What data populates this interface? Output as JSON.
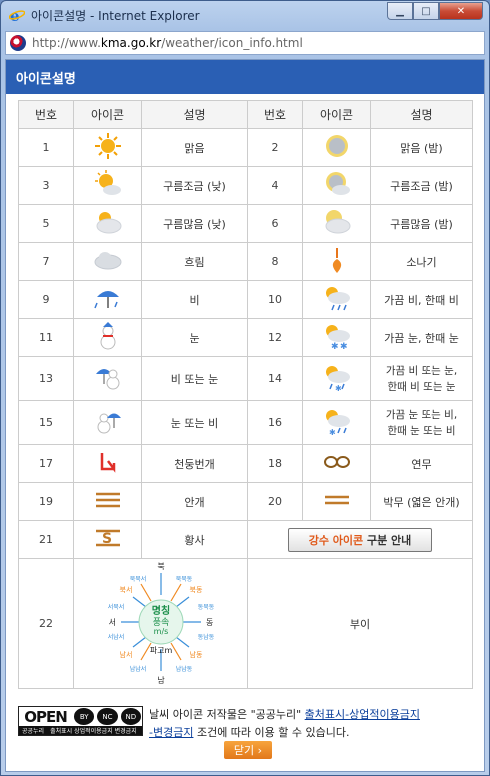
{
  "window": {
    "title": "아이콘설명 - Internet Explorer",
    "min_icon": "minimize-icon",
    "max_icon": "maximize-icon",
    "close_icon": "close-icon"
  },
  "address": {
    "prefix": "http://www.",
    "host": "kma.go.kr",
    "path": "/weather/icon_info.html"
  },
  "header": {
    "title": "아이콘설명"
  },
  "table": {
    "headers": [
      "번호",
      "아이콘",
      "설명",
      "번호",
      "아이콘",
      "설명"
    ],
    "rows": [
      {
        "n1": "1",
        "i1": "sun-icon",
        "d1": "맑음",
        "n2": "2",
        "i2": "moon-icon",
        "d2": "맑음 (밤)"
      },
      {
        "n1": "3",
        "i1": "sun-few-clouds-icon",
        "d1": "구름조금 (낮)",
        "n2": "4",
        "i2": "moon-few-clouds-icon",
        "d2": "구름조금 (밤)"
      },
      {
        "n1": "5",
        "i1": "sun-many-clouds-icon",
        "d1": "구름많음 (낮)",
        "n2": "6",
        "i2": "moon-many-clouds-icon",
        "d2": "구름많음 (밤)"
      },
      {
        "n1": "7",
        "i1": "cloudy-icon",
        "d1": "흐림",
        "n2": "8",
        "i2": "shower-icon",
        "d2": "소나기"
      },
      {
        "n1": "9",
        "i1": "rain-umbrella-icon",
        "d1": "비",
        "n2": "10",
        "i2": "occasional-rain-icon",
        "d2": "가끔 비, 한때 비"
      },
      {
        "n1": "11",
        "i1": "snowman-icon",
        "d1": "눈",
        "n2": "12",
        "i2": "occasional-snow-icon",
        "d2": "가끔 눈, 한때 눈"
      },
      {
        "n1": "13",
        "i1": "rain-or-snow-icon",
        "d1": "비 또는 눈",
        "n2": "14",
        "i2": "occasional-rain-or-snow-icon",
        "d2a": "가끔 비 또는 눈,",
        "d2b": "한때 비 또는 눈"
      },
      {
        "n1": "15",
        "i1": "snow-or-rain-icon",
        "d1": "눈 또는 비",
        "n2": "16",
        "i2": "occasional-snow-or-rain-icon",
        "d2a": "가끔 눈 또는 비,",
        "d2b": "한때 눈 또는 비"
      },
      {
        "n1": "17",
        "i1": "thunder-icon",
        "d1": "천둥번개",
        "n2": "18",
        "i2": "smoke-icon",
        "d2": "연무"
      },
      {
        "n1": "19",
        "i1": "fog-icon",
        "d1": "안개",
        "n2": "20",
        "i2": "haze-icon",
        "d2": "박무 (엷은 안개)"
      },
      {
        "n1": "21",
        "i1": "yellow-dust-icon",
        "d1": "황사",
        "button_highlight": "강수 아이콘",
        "button_rest": " 구분 안내"
      },
      {
        "n1": "22",
        "i1": "wind-compass-icon",
        "d2": "부이"
      }
    ]
  },
  "compass": {
    "n": "북",
    "nnw": "북북서",
    "nne": "북북동",
    "nw": "북서",
    "ne": "북동",
    "wnw": "서북서",
    "ene": "동북동",
    "w": "서",
    "e": "동",
    "wsw": "서남서",
    "ese": "동남동",
    "sw": "남서",
    "se": "남동",
    "ssw": "남남서",
    "sse": "남남동",
    "s": "남",
    "center_name": "명칭",
    "center_speed": "풍속",
    "center_unit": "m/s",
    "center_wave": "파고m"
  },
  "footer": {
    "open_word": "OPEN",
    "badges": [
      "BY",
      "NC",
      "ND"
    ],
    "open_label": "공공누리",
    "open_sub": "출처표시 상업적이용금지 변경금지",
    "text_before": "날씨 아이콘 저작물은 \"공공누리\" ",
    "link1": "출처표시-상업적이용금지",
    "link2": "-변경금지",
    "text_after": " 조건에 따라 이용 할 수 있습니다."
  },
  "close_button": "닫기 ›",
  "colors": {
    "header": "#2a5fb4",
    "accent_orange": "#e2781a",
    "sun": "#f6b21b"
  }
}
